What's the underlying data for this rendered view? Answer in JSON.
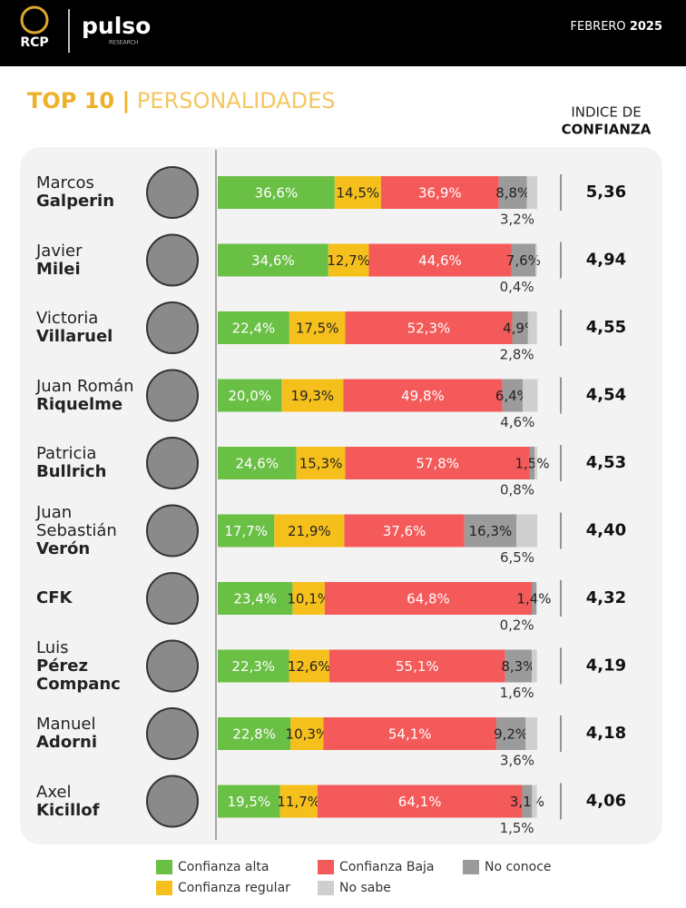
{
  "header": {
    "brand": "RCP",
    "partner": "pulso",
    "partner_sub": "RESEARCH",
    "month": "FEBRERO",
    "year": "2025"
  },
  "chart_data": {
    "type": "stacked-bar-h",
    "title_bold": "TOP 10 |",
    "title_light": "PERSONALIDADES",
    "index_title": {
      "top": "INDICE DE",
      "bottom": "CONFIANZA"
    },
    "categories": [
      {
        "first": "Marcos",
        "last": "Galperin"
      },
      {
        "first": "Javier",
        "last": "Milei"
      },
      {
        "first": "Victoria",
        "last": "Villaruel"
      },
      {
        "first": "Juan Román",
        "last": "Riquelme"
      },
      {
        "first": "Patricia",
        "last": "Bullrich"
      },
      {
        "first": "Juan Sebastián",
        "last": "Verón"
      },
      {
        "last": "CFK"
      },
      {
        "first": "Luis",
        "last": "Pérez Companc"
      },
      {
        "first": "Manuel",
        "last": "Adorni"
      },
      {
        "first": "Axel",
        "last": "Kicillof"
      }
    ],
    "xlim": [
      0,
      100
    ],
    "series": [
      {
        "name": "Confianza alta",
        "color": "#6abf45",
        "values": [
          36.6,
          34.6,
          22.4,
          20.0,
          24.6,
          17.7,
          23.4,
          22.3,
          22.8,
          19.5
        ],
        "value_labels": [
          "36,6%",
          "34,6%",
          "22,4%",
          "20,0%",
          "24,6%",
          "17,7%",
          "23,4%",
          "22,3%",
          "22,8%",
          "19,5%"
        ]
      },
      {
        "name": "Confianza regular",
        "color": "#f6c01c",
        "values": [
          14.5,
          12.7,
          17.5,
          19.3,
          15.3,
          21.9,
          10.1,
          12.6,
          10.3,
          11.7
        ],
        "value_labels": [
          "14,5%",
          "12,7%",
          "17,5%",
          "19,3%",
          "15,3%",
          "21,9%",
          "10,1%",
          "12,6%",
          "10,3%",
          "11,7%"
        ]
      },
      {
        "name": "Confianza Baja",
        "color": "#f45a5a",
        "values": [
          36.9,
          44.6,
          52.3,
          49.8,
          57.8,
          37.6,
          64.8,
          55.1,
          54.1,
          64.1
        ],
        "value_labels": [
          "36,9%",
          "44,6%",
          "52,3%",
          "49,8%",
          "57,8%",
          "37,6%",
          "64,8%",
          "55,1%",
          "54,1%",
          "64,1%"
        ]
      },
      {
        "name": "No conoce",
        "color": "#9b9b9b",
        "values": [
          8.8,
          7.6,
          4.9,
          6.4,
          1.5,
          16.3,
          1.4,
          8.3,
          9.2,
          3.1
        ],
        "value_labels": [
          "8,8%",
          "7,6%",
          "4,9%",
          "6,4%",
          "1,5%",
          "16,3%",
          "1,4%",
          "8,3%",
          "9,2%",
          "3,1%"
        ]
      },
      {
        "name": "No sabe",
        "color": "#cfcfcf",
        "values": [
          3.2,
          0.4,
          2.8,
          4.6,
          0.8,
          6.5,
          0.2,
          1.6,
          3.6,
          1.5
        ],
        "value_labels": [
          "3,2%",
          "0,4%",
          "2,8%",
          "4,6%",
          "0,8%",
          "6,5%",
          "0,2%",
          "1,6%",
          "3,6%",
          "1,5%"
        ]
      }
    ],
    "index": {
      "values": [
        5.36,
        4.94,
        4.55,
        4.54,
        4.53,
        4.4,
        4.32,
        4.19,
        4.18,
        4.06
      ],
      "value_labels": [
        "5,36",
        "4,94",
        "4,55",
        "4,54",
        "4,53",
        "4,40",
        "4,32",
        "4,19",
        "4,18",
        "4,06"
      ]
    }
  }
}
